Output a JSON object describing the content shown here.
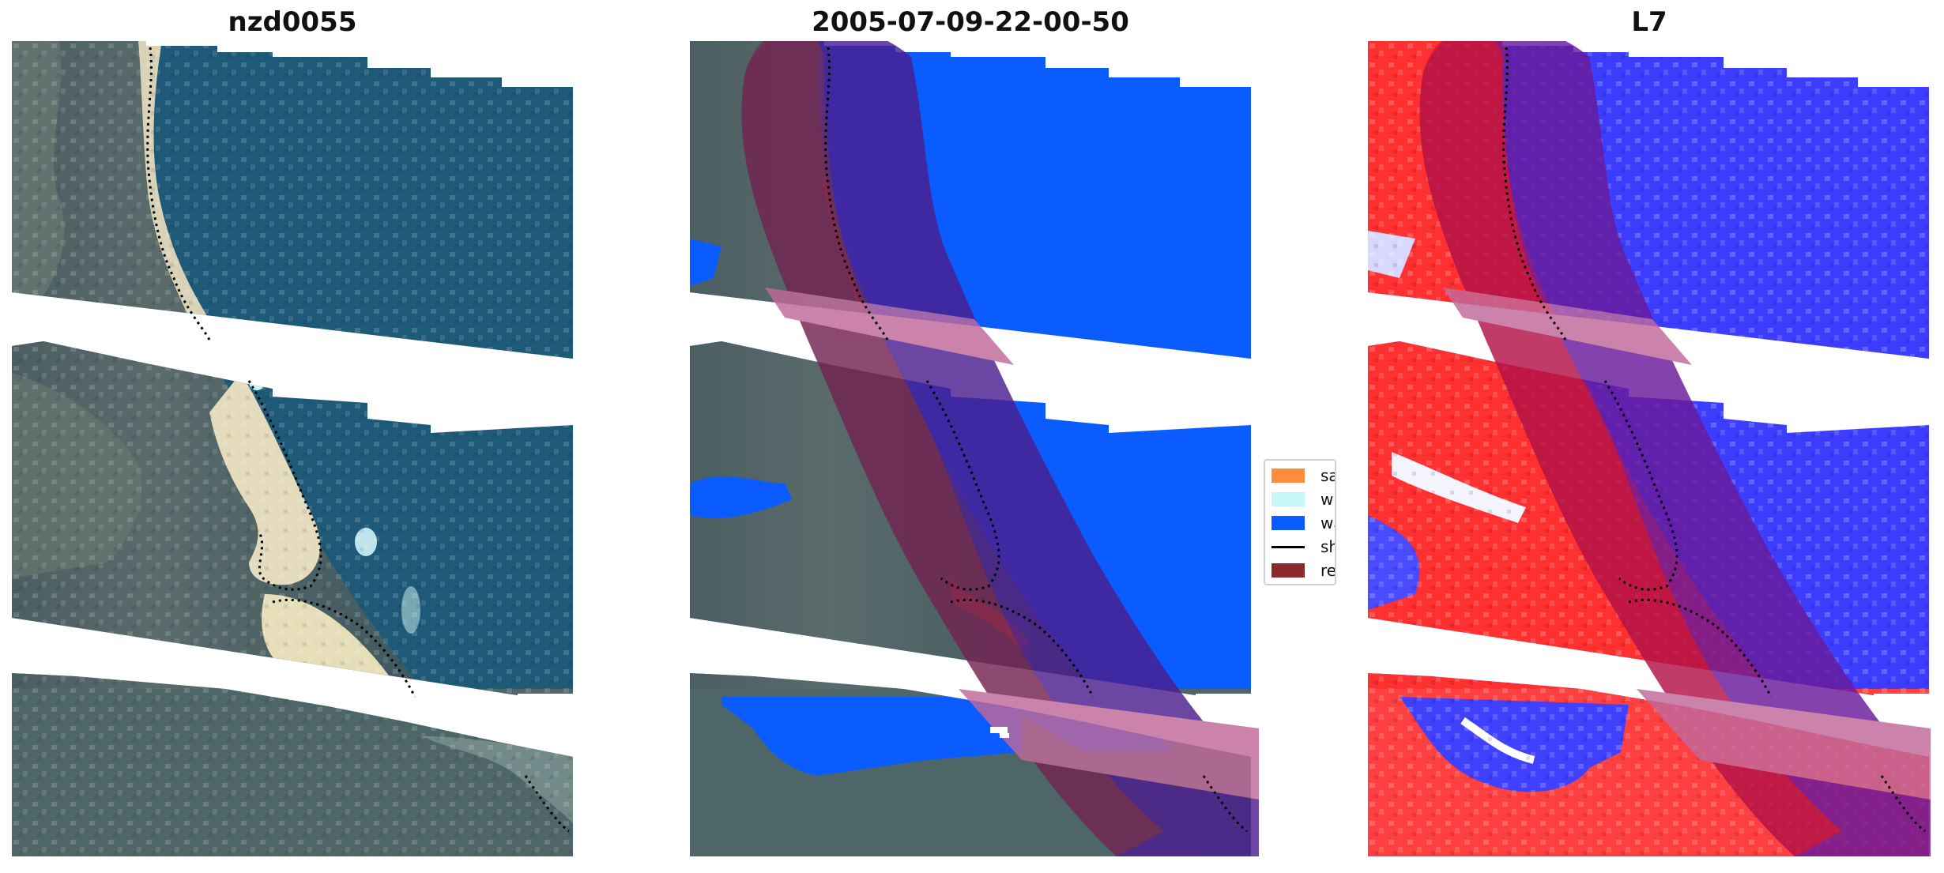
{
  "panels": [
    {
      "title": "nzd0055"
    },
    {
      "title": "2005-07-09-22-00-50"
    },
    {
      "title": "L7"
    }
  ],
  "legend": {
    "items": [
      {
        "label": "sand",
        "color": "#ff8c3a",
        "kind": "patch"
      },
      {
        "label": "whitewater",
        "color": "#c8f7f7",
        "kind": "patch"
      },
      {
        "label": "water",
        "color": "#0a5cff",
        "kind": "patch"
      },
      {
        "label": "shoreline",
        "color": "#000000",
        "kind": "line"
      },
      {
        "label": "reference shoreline buffer",
        "color": "#8b2a2a",
        "kind": "patch"
      }
    ]
  },
  "colors": {
    "water_classified": "#0a5cff",
    "buffer_overlay": "#8b2a2a",
    "index_positive": "#ff1a1a",
    "index_negative": "#1a1aff"
  }
}
